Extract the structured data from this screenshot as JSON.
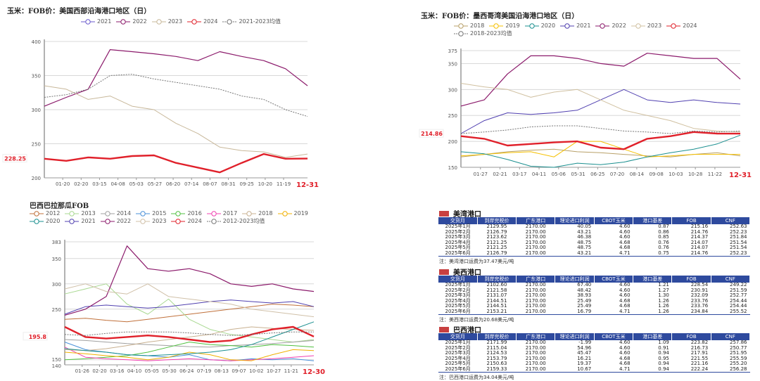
{
  "chart_data": [
    {
      "type": "line",
      "title": "玉米：FOB价：美国西部沿海港口地区（日）",
      "yticks": [
        200,
        250,
        300,
        350,
        400
      ],
      "ylim": [
        200,
        400
      ],
      "xticks": [
        "01-20",
        "02-20",
        "03-15",
        "04-08",
        "05-03",
        "05-27",
        "06-20",
        "07-14",
        "08-07",
        "08-31",
        "09-25",
        "10-20",
        "11-19"
      ],
      "x_end_label": "12-31",
      "last_value_label": "228.25",
      "series": [
        {
          "name": "2021",
          "color": "#6a5acd",
          "dash": "",
          "width": 1,
          "values": []
        },
        {
          "name": "2022",
          "color": "#8b1a6b",
          "dash": "",
          "width": 1.2,
          "values": [
            305,
            318,
            330,
            388,
            385,
            382,
            378,
            372,
            385,
            378,
            372,
            360,
            335
          ]
        },
        {
          "name": "2023",
          "color": "#c8b89a",
          "dash": "",
          "width": 1,
          "values": [
            335,
            330,
            315,
            320,
            305,
            300,
            280,
            265,
            245,
            240,
            238,
            230,
            235
          ]
        },
        {
          "name": "2024",
          "color": "#e0202a",
          "dash": "",
          "width": 2.4,
          "values": [
            228,
            225,
            230,
            228,
            232,
            233,
            222,
            215,
            208,
            222,
            235,
            228,
            228.25
          ]
        },
        {
          "name": "2021-2023均值",
          "color": "#777777",
          "dash": "2,1.5",
          "width": 1,
          "values": [
            318,
            322,
            330,
            350,
            352,
            345,
            340,
            335,
            330,
            320,
            315,
            300,
            290
          ]
        }
      ]
    },
    {
      "type": "line",
      "title": "玉米：FOB价：墨西哥湾美国沿海港口地区（日）",
      "yticks": [
        150,
        200,
        250,
        300,
        350,
        375
      ],
      "ylim": [
        150,
        375
      ],
      "xticks": [
        "01-27",
        "02-21",
        "03-17",
        "04-11",
        "05-06",
        "05-31",
        "06-25",
        "07-20",
        "08-14",
        "09-08",
        "10-03",
        "10-28",
        "11-22"
      ],
      "x_end_label": "12-31",
      "last_value_label": "214.86",
      "series": [
        {
          "name": "2018",
          "color": "#b8a068",
          "dash": "",
          "width": 1,
          "values": [
            170,
            175,
            180,
            183,
            185,
            180,
            178,
            175,
            172,
            170,
            175,
            178,
            172
          ]
        },
        {
          "name": "2019",
          "color": "#f5c000",
          "dash": "",
          "width": 1,
          "values": [
            172,
            175,
            178,
            180,
            170,
            200,
            200,
            185,
            170,
            172,
            175,
            175,
            175
          ]
        },
        {
          "name": "2020",
          "color": "#1a8f8f",
          "dash": "",
          "width": 1,
          "values": [
            180,
            176,
            165,
            152,
            150,
            158,
            155,
            160,
            170,
            178,
            185,
            195,
            212
          ]
        },
        {
          "name": "2021",
          "color": "#5040b0",
          "dash": "",
          "width": 1,
          "values": [
            215,
            240,
            255,
            252,
            255,
            260,
            280,
            300,
            280,
            275,
            280,
            275,
            272
          ]
        },
        {
          "name": "2022",
          "color": "#8b1a6b",
          "dash": "",
          "width": 1.2,
          "values": [
            268,
            280,
            330,
            365,
            365,
            360,
            350,
            345,
            370,
            365,
            360,
            360,
            320
          ]
        },
        {
          "name": "2023",
          "color": "#d0c0a0",
          "dash": "",
          "width": 1,
          "values": [
            312,
            305,
            300,
            285,
            295,
            300,
            280,
            260,
            250,
            240,
            225,
            220,
            218
          ]
        },
        {
          "name": "2024",
          "color": "#e0202a",
          "dash": "",
          "width": 2.4,
          "values": [
            210,
            205,
            192,
            195,
            198,
            200,
            188,
            185,
            205,
            210,
            218,
            215,
            214.86
          ]
        },
        {
          "name": "2018-2023均值",
          "color": "#777777",
          "dash": "2,1.5",
          "width": 1,
          "values": [
            215,
            218,
            222,
            228,
            230,
            230,
            225,
            220,
            218,
            215,
            220,
            218,
            220
          ]
        }
      ]
    },
    {
      "type": "line",
      "title": "巴西巴拉那瓜FOB",
      "yticks": [
        140,
        150,
        250,
        300,
        350,
        383
      ],
      "ylim": [
        140,
        383
      ],
      "xticks": [
        "01-26",
        "02-20",
        "03-16",
        "04-10",
        "05-05",
        "05-30",
        "06-24",
        "07-19",
        "08-13",
        "09-07",
        "10-02",
        "10-27",
        "11-21"
      ],
      "x_end_label": "12-30",
      "last_value_label": "195.8",
      "series": [
        {
          "name": "2012",
          "color": "#c0703a",
          "dash": "",
          "width": 1,
          "values": [
            230,
            232,
            228,
            225,
            230,
            235,
            240,
            245,
            250,
            255,
            260,
            258,
            255
          ]
        },
        {
          "name": "2013",
          "color": "#a8d890",
          "dash": "",
          "width": 1,
          "values": [
            280,
            290,
            300,
            260,
            240,
            270,
            230,
            210,
            200,
            195,
            190,
            185,
            190
          ]
        },
        {
          "name": "2014",
          "color": "#a0a0a0",
          "dash": "",
          "width": 1,
          "values": [
            190,
            188,
            185,
            182,
            180,
            178,
            176,
            175,
            178,
            180,
            182,
            185,
            188
          ]
        },
        {
          "name": "2015",
          "color": "#4a90d9",
          "dash": "",
          "width": 1,
          "values": [
            185,
            170,
            165,
            160,
            158,
            155,
            160,
            150,
            148,
            152,
            150,
            152,
            148
          ]
        },
        {
          "name": "2016",
          "color": "#50c040",
          "dash": "",
          "width": 1,
          "values": [
            150,
            152,
            155,
            158,
            165,
            175,
            185,
            180,
            178,
            175,
            180,
            178,
            175
          ]
        },
        {
          "name": "2017",
          "color": "#f040b0",
          "dash": "",
          "width": 1,
          "values": [
            175,
            155,
            152,
            150,
            148,
            150,
            152,
            150,
            148,
            150,
            152,
            155,
            158
          ]
        },
        {
          "name": "2018",
          "color": "#c8b090",
          "dash": "",
          "width": 1,
          "values": [
            170,
            168,
            172,
            178,
            185,
            190,
            195,
            200,
            210,
            215,
            212,
            210,
            208
          ]
        },
        {
          "name": "2019",
          "color": "#f0b000",
          "dash": "",
          "width": 1,
          "values": [
            165,
            162,
            158,
            155,
            150,
            155,
            165,
            160,
            150,
            148,
            160,
            170,
            168
          ]
        },
        {
          "name": "2020",
          "color": "#1a8f8f",
          "dash": "",
          "width": 1,
          "values": [
            172,
            168,
            165,
            160,
            158,
            160,
            162,
            165,
            170,
            180,
            195,
            210,
            225
          ]
        },
        {
          "name": "2021",
          "color": "#5040b0",
          "dash": "",
          "width": 1,
          "values": [
            240,
            255,
            258,
            255,
            252,
            255,
            260,
            265,
            268,
            265,
            262,
            265,
            255
          ]
        },
        {
          "name": "2022",
          "color": "#8b1a6b",
          "dash": "",
          "width": 1.2,
          "values": [
            238,
            250,
            275,
            375,
            330,
            325,
            330,
            320,
            300,
            295,
            300,
            290,
            285
          ]
        },
        {
          "name": "2023",
          "color": "#d0c0a8",
          "dash": "",
          "width": 1,
          "values": [
            290,
            300,
            285,
            280,
            300,
            275,
            270,
            265,
            260,
            250,
            245,
            240,
            235
          ]
        },
        {
          "name": "2024",
          "color": "#e0202a",
          "dash": "",
          "width": 2.4,
          "values": [
            215,
            195,
            192,
            195,
            198,
            195,
            190,
            185,
            188,
            200,
            210,
            215,
            195.8
          ]
        },
        {
          "name": "2012-2023均值",
          "color": "#777777",
          "dash": "2,1.5",
          "width": 1,
          "values": [
            200,
            198,
            202,
            205,
            205,
            205,
            203,
            200,
            198,
            200,
            203,
            205,
            205
          ]
        }
      ]
    }
  ],
  "tables": [
    {
      "title": "美湾港口",
      "columns": [
        "交货月",
        "到岸完税价",
        "广东港口",
        "理论进口利润",
        "CBOT玉米",
        "港口基差",
        "FOB",
        "CNF"
      ],
      "rows": [
        [
          "2025年1月",
          "2129.95",
          "2170.00",
          "40.05",
          "4.60",
          "0.87",
          "215.16",
          "252.63"
        ],
        [
          "2025年2月",
          "2126.79",
          "2170.00",
          "43.21",
          "4.60",
          "0.86",
          "214.76",
          "252.23"
        ],
        [
          "2025年3月",
          "2123.62",
          "2170.00",
          "46.38",
          "4.60",
          "0.85",
          "214.37",
          "251.84"
        ],
        [
          "2025年4月",
          "2121.25",
          "2170.00",
          "48.75",
          "4.68",
          "0.76",
          "214.07",
          "251.54"
        ],
        [
          "2025年5月",
          "2121.25",
          "2170.00",
          "48.75",
          "4.68",
          "0.76",
          "214.07",
          "251.54"
        ],
        [
          "2025年6月",
          "2126.79",
          "2170.00",
          "43.21",
          "4.71",
          "0.75",
          "214.76",
          "252.23"
        ]
      ],
      "note": "注：美湾港口运费为37.47美元/吨"
    },
    {
      "title": "美西港口",
      "columns": [
        "交货月",
        "到岸完税价",
        "广东港口",
        "理论进口利润",
        "CBOT玉米",
        "港口基差",
        "FOB",
        "CNF"
      ],
      "rows": [
        [
          "2025年1月",
          "2102.60",
          "2170.00",
          "67.40",
          "4.60",
          "1.21",
          "228.54",
          "249.22"
        ],
        [
          "2025年2月",
          "2121.58",
          "2170.00",
          "48.42",
          "4.60",
          "1.27",
          "230.91",
          "251.59"
        ],
        [
          "2025年3月",
          "2131.07",
          "2170.00",
          "38.93",
          "4.60",
          "1.30",
          "232.09",
          "252.77"
        ],
        [
          "2025年4月",
          "2144.51",
          "2170.00",
          "25.49",
          "4.68",
          "1.26",
          "233.76",
          "254.44"
        ],
        [
          "2025年5月",
          "2144.51",
          "2170.00",
          "25.49",
          "4.68",
          "1.26",
          "233.76",
          "254.44"
        ],
        [
          "2025年6月",
          "2153.21",
          "2170.00",
          "16.79",
          "4.71",
          "1.26",
          "234.84",
          "255.52"
        ]
      ],
      "note": "注：美西港口运费为20.68美元/吨"
    },
    {
      "title": "巴西港口",
      "columns": [
        "交货月",
        "到岸完税价",
        "广东港口",
        "理论进口利润",
        "CBOT玉米",
        "港口基差",
        "FOB",
        "CNF"
      ],
      "rows": [
        [
          "2025年1月",
          "2171.99",
          "2170.00",
          "-1.99",
          "4.60",
          "1.09",
          "223.82",
          "257.86"
        ],
        [
          "2025年2月",
          "2115.04",
          "2170.00",
          "54.96",
          "4.60",
          "0.91",
          "216.73",
          "250.77"
        ],
        [
          "2025年3月",
          "2124.53",
          "2170.00",
          "45.47",
          "4.60",
          "0.94",
          "217.91",
          "251.95"
        ],
        [
          "2025年4月",
          "2153.79",
          "2170.00",
          "16.21",
          "4.68",
          "0.95",
          "221.55",
          "255.59"
        ],
        [
          "2025年5月",
          "2150.63",
          "2170.00",
          "19.37",
          "4.68",
          "0.94",
          "221.16",
          "255.20"
        ],
        [
          "2025年6月",
          "2159.33",
          "2170.00",
          "10.67",
          "4.71",
          "0.94",
          "222.24",
          "256.28"
        ]
      ],
      "note": "注：巴西港口运费为34.04美元/吨"
    }
  ]
}
